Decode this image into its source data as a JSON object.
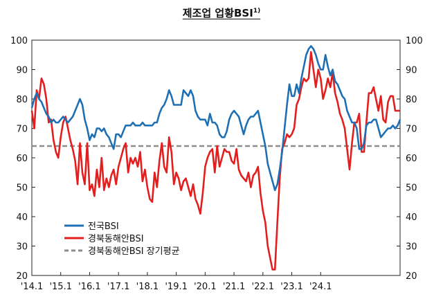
{
  "title": "제조업 업황BSI",
  "title_sup": "1)",
  "chart_data": {
    "type": "line",
    "ylim": [
      20,
      100
    ],
    "yticks": [
      20,
      30,
      40,
      50,
      60,
      70,
      80,
      90,
      100
    ],
    "ytick_labels": [
      "20",
      "30",
      "40",
      "50",
      "60",
      "70",
      "80",
      "90",
      "100"
    ],
    "xtick_labels": [
      "'14.1",
      "'15.1",
      "'16.1",
      "'17.1",
      "'18.1",
      "'19.1",
      "'20.1",
      "'21.1",
      "'22.1",
      "'23.1",
      "'24.1"
    ],
    "legend_position": "bottom-left",
    "series": [
      {
        "name": "전국BSI",
        "color": "#1f6fb4",
        "values": [
          77,
          80,
          82,
          80,
          79,
          77,
          75,
          74,
          72,
          73,
          72,
          72,
          73,
          74,
          73,
          72,
          73,
          74,
          76,
          78,
          80,
          78,
          73,
          70,
          66,
          68,
          67,
          70,
          70,
          69,
          70,
          68,
          67,
          65,
          63,
          68,
          68,
          67,
          69,
          71,
          71,
          71,
          72,
          71,
          71,
          71,
          72,
          71,
          71,
          71,
          71,
          72,
          72,
          75,
          77,
          78,
          80,
          83,
          81,
          78,
          78,
          78,
          78,
          83,
          82,
          81,
          83,
          81,
          76,
          74,
          73,
          73,
          73,
          71,
          75,
          72,
          72,
          71,
          68,
          67,
          67,
          69,
          73,
          75,
          76,
          75,
          74,
          71,
          68,
          71,
          73,
          74,
          74,
          75,
          76,
          72,
          68,
          64,
          58,
          55,
          52,
          49,
          51,
          56,
          62,
          70,
          78,
          85,
          81,
          81,
          85,
          82,
          87,
          91,
          95,
          97,
          98,
          97,
          95,
          92,
          90,
          90,
          95,
          91,
          88,
          90,
          86,
          85,
          83,
          81,
          80,
          76,
          74,
          72,
          72,
          70,
          63,
          63,
          65,
          71,
          72,
          72,
          73,
          73,
          70,
          67,
          68,
          69,
          70,
          70,
          71,
          70,
          71,
          73
        ]
      },
      {
        "name": "경북동해안BSI",
        "color": "#e31e1e",
        "values": [
          76,
          70,
          83,
          80,
          87,
          85,
          80,
          72,
          73,
          66,
          62,
          60,
          67,
          72,
          74,
          70,
          66,
          63,
          59,
          51,
          65,
          55,
          51,
          65,
          49,
          51,
          47,
          56,
          50,
          60,
          49,
          53,
          50,
          54,
          56,
          51,
          57,
          60,
          63,
          65,
          55,
          60,
          58,
          60,
          57,
          62,
          52,
          56,
          50,
          46,
          45,
          55,
          50,
          59,
          65,
          57,
          55,
          67,
          62,
          51,
          55,
          53,
          49,
          52,
          53,
          50,
          47,
          51,
          46,
          44,
          41,
          48,
          57,
          60,
          62,
          63,
          55,
          64,
          57,
          60,
          63,
          62,
          62,
          59,
          58,
          63,
          56,
          54,
          53,
          52,
          55,
          50,
          54,
          55,
          57,
          48,
          42,
          38,
          30,
          26,
          22,
          22,
          38,
          53,
          63,
          65,
          68,
          67,
          68,
          70,
          78,
          80,
          84,
          87,
          86,
          87,
          96,
          90,
          84,
          90,
          87,
          80,
          83,
          87,
          84,
          89,
          82,
          79,
          75,
          73,
          70,
          63,
          56,
          65,
          72,
          72,
          75,
          62,
          62,
          72,
          82,
          82,
          84,
          80,
          76,
          81,
          73,
          72,
          79,
          81,
          81,
          76,
          76,
          76
        ]
      },
      {
        "name": "경북동해안BSI 장기평균",
        "color": "#8c8c8c",
        "value": 64,
        "style": "dashed"
      }
    ]
  }
}
